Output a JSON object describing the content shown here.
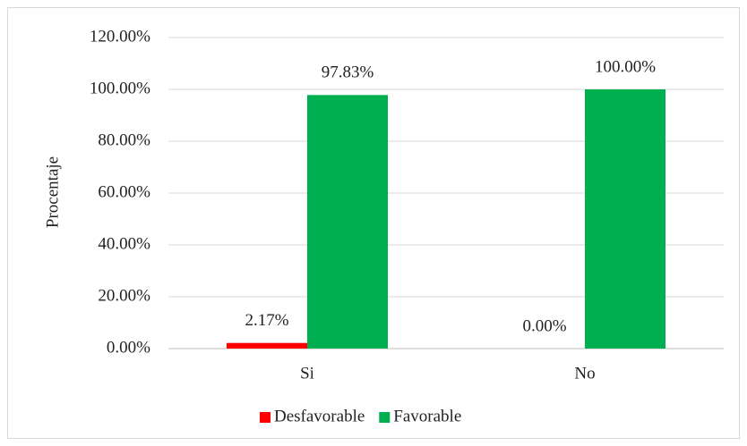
{
  "chart_data": {
    "type": "bar",
    "categories": [
      "Si",
      "No"
    ],
    "series": [
      {
        "name": "Desfavorable",
        "color": "#ff0000",
        "values": [
          2.17,
          0
        ],
        "value_labels": [
          "2.17%",
          "0.00%"
        ]
      },
      {
        "name": "Favorable",
        "color": "#00b050",
        "values": [
          97.83,
          100
        ],
        "value_labels": [
          "97.83%",
          "100.00%"
        ]
      }
    ],
    "y_label": "Procentaje",
    "ylim": [
      0,
      120
    ],
    "yticks": [
      {
        "value": 0,
        "label": "0.00%"
      },
      {
        "value": 20,
        "label": "20.00%"
      },
      {
        "value": 40,
        "label": "40.00%"
      },
      {
        "value": 60,
        "label": "60.00%"
      },
      {
        "value": 80,
        "label": "80.00%"
      },
      {
        "value": 100,
        "label": "100.00%"
      },
      {
        "value": 120,
        "label": "120.00%"
      }
    ],
    "grid": true,
    "legend": "bottom"
  }
}
